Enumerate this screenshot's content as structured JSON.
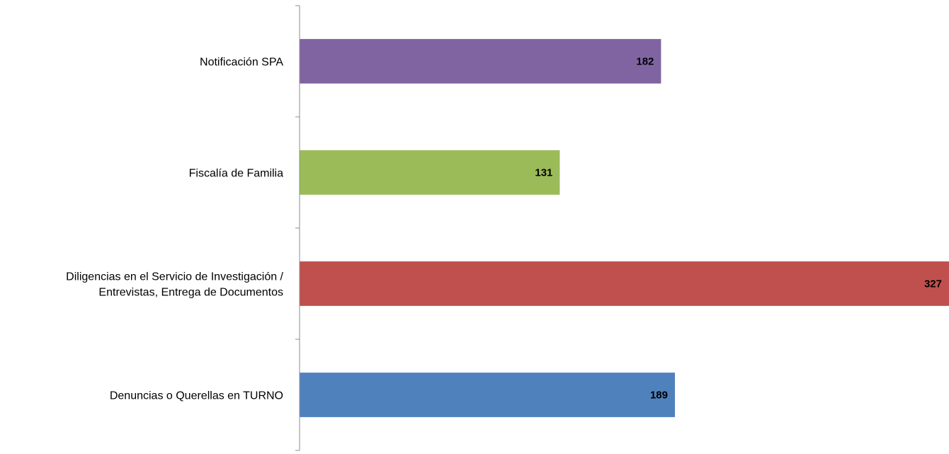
{
  "chart_data": {
    "type": "bar",
    "orientation": "horizontal",
    "categories": [
      "Denuncias o Querellas en TURNO",
      "Diligencias en el Servicio de Investigación / Entrevistas, Entrega de Documentos",
      "Fiscalía de Familia",
      "Notificación SPA"
    ],
    "category_label_lines": [
      [
        "Denuncias o Querellas en TURNO"
      ],
      [
        "Diligencias en el Servicio de Investigación /",
        "Entrevistas, Entrega de Documentos"
      ],
      [
        "Fiscalía de Familia"
      ],
      [
        "Notificación SPA"
      ]
    ],
    "values": [
      189,
      327,
      131,
      182
    ],
    "value_labels": [
      "189",
      "327",
      "131",
      "182"
    ],
    "colors": [
      "#4f81bd",
      "#c0504d",
      "#9bbb59",
      "#8064a2"
    ],
    "title": "",
    "xlabel": "",
    "ylabel": "",
    "xlim": [
      0,
      327
    ],
    "grid": false,
    "legend": "none",
    "data_labels": "inside-end"
  }
}
